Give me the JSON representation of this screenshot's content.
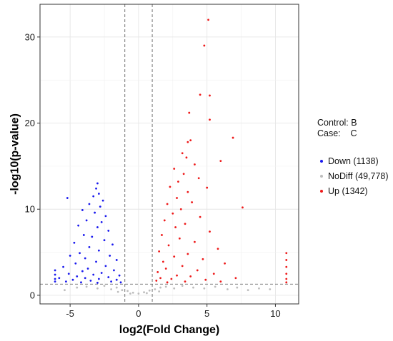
{
  "chart_data": {
    "type": "scatter",
    "title": "",
    "xlabel": "log2(Fold Change)",
    "ylabel": "-log10(p-value)",
    "xlim": [
      -7.2,
      11.7
    ],
    "ylim": [
      -1.0,
      33.8
    ],
    "x_ticks": [
      -5,
      0,
      5,
      10
    ],
    "y_ticks": [
      0,
      10,
      20,
      30
    ],
    "x_tick_labels": [
      "-5",
      "0",
      "5",
      "10"
    ],
    "y_tick_labels": [
      "0",
      "10",
      "20",
      "30"
    ],
    "grid": true,
    "legend_position": "right",
    "thresholds": {
      "fold_change_vlines": [
        -1,
        1
      ],
      "pvalue_hline": 1.3
    },
    "colors": {
      "Down": "#1a1aee",
      "NoDiff": "#bdbdbd",
      "Up": "#ee1a1a"
    },
    "series": [
      {
        "name": "Down (1138)",
        "group": "Down",
        "count": 1138,
        "points": [
          [
            -5.2,
            11.3
          ],
          [
            -3.0,
            13.0
          ],
          [
            -3.1,
            12.4
          ],
          [
            -2.9,
            11.8
          ],
          [
            -3.3,
            11.5
          ],
          [
            -2.6,
            11.0
          ],
          [
            -3.6,
            10.6
          ],
          [
            -2.8,
            10.3
          ],
          [
            -4.1,
            9.9
          ],
          [
            -3.2,
            9.6
          ],
          [
            -2.4,
            9.2
          ],
          [
            -3.8,
            8.7
          ],
          [
            -2.7,
            8.5
          ],
          [
            -4.4,
            8.1
          ],
          [
            -3.0,
            7.9
          ],
          [
            -2.2,
            7.5
          ],
          [
            -4.0,
            7.0
          ],
          [
            -3.4,
            6.8
          ],
          [
            -2.5,
            6.4
          ],
          [
            -4.7,
            6.1
          ],
          [
            -1.9,
            5.9
          ],
          [
            -3.6,
            5.6
          ],
          [
            -2.9,
            5.2
          ],
          [
            -4.3,
            4.9
          ],
          [
            -2.1,
            4.6
          ],
          [
            -5.0,
            4.6
          ],
          [
            -3.9,
            4.3
          ],
          [
            -1.6,
            4.1
          ],
          [
            -3.1,
            3.9
          ],
          [
            -4.6,
            3.7
          ],
          [
            -2.4,
            3.4
          ],
          [
            -5.5,
            3.3
          ],
          [
            -3.7,
            3.1
          ],
          [
            -1.8,
            2.9
          ],
          [
            -4.1,
            2.8
          ],
          [
            -2.7,
            2.6
          ],
          [
            -5.1,
            2.5
          ],
          [
            -3.3,
            2.4
          ],
          [
            -1.4,
            2.3
          ],
          [
            -4.5,
            2.2
          ],
          [
            -2.2,
            2.1
          ],
          [
            -3.9,
            2.0
          ],
          [
            -5.8,
            2.0
          ],
          [
            -2.9,
            1.9
          ],
          [
            -1.6,
            1.8
          ],
          [
            -4.8,
            1.8
          ],
          [
            -3.5,
            1.7
          ],
          [
            -2.0,
            1.6
          ],
          [
            -5.3,
            1.6
          ],
          [
            -4.2,
            1.5
          ],
          [
            -1.3,
            1.5
          ],
          [
            -3.0,
            1.45
          ],
          [
            -6.1,
            2.9
          ],
          [
            -6.1,
            2.4
          ],
          [
            -6.1,
            1.9
          ],
          [
            -6.1,
            1.6
          ]
        ]
      },
      {
        "name": "NoDiff (49,778)",
        "group": "NoDiff",
        "count": 49778,
        "points": [
          [
            -4.5,
            0.9
          ],
          [
            -3.8,
            1.0
          ],
          [
            -3.0,
            0.8
          ],
          [
            -2.5,
            1.1
          ],
          [
            -2.0,
            0.7
          ],
          [
            -1.6,
            0.9
          ],
          [
            -1.2,
            0.6
          ],
          [
            -0.8,
            0.5
          ],
          [
            -0.4,
            0.3
          ],
          [
            0.0,
            0.2
          ],
          [
            0.4,
            0.35
          ],
          [
            0.8,
            0.55
          ],
          [
            1.2,
            0.7
          ],
          [
            1.6,
            0.9
          ],
          [
            2.0,
            1.0
          ],
          [
            2.6,
            0.8
          ],
          [
            3.2,
            1.1
          ],
          [
            4.0,
            0.9
          ],
          [
            4.8,
            0.8
          ],
          [
            5.6,
            1.0
          ],
          [
            6.5,
            0.7
          ],
          [
            7.2,
            0.9
          ],
          [
            8.0,
            0.6
          ],
          [
            8.8,
            0.8
          ],
          [
            9.6,
            0.7
          ],
          [
            -5.4,
            0.6
          ],
          [
            -0.6,
            0.2
          ],
          [
            0.6,
            0.25
          ],
          [
            1.5,
            0.45
          ],
          [
            -1.5,
            0.4
          ]
        ]
      },
      {
        "name": "Up (1342)",
        "group": "Up",
        "count": 1342,
        "points": [
          [
            5.1,
            32.0
          ],
          [
            4.8,
            29.0
          ],
          [
            4.5,
            23.3
          ],
          [
            5.2,
            23.2
          ],
          [
            3.7,
            21.2
          ],
          [
            5.2,
            20.4
          ],
          [
            6.9,
            18.3
          ],
          [
            3.8,
            18.0
          ],
          [
            3.6,
            17.8
          ],
          [
            3.2,
            16.5
          ],
          [
            3.5,
            16.0
          ],
          [
            6.0,
            15.6
          ],
          [
            4.1,
            15.2
          ],
          [
            2.6,
            14.7
          ],
          [
            3.3,
            14.1
          ],
          [
            4.4,
            13.6
          ],
          [
            2.9,
            13.2
          ],
          [
            5.0,
            12.5
          ],
          [
            2.3,
            12.6
          ],
          [
            3.6,
            12.0
          ],
          [
            2.8,
            11.3
          ],
          [
            3.9,
            10.8
          ],
          [
            2.1,
            10.6
          ],
          [
            7.6,
            10.2
          ],
          [
            3.1,
            10.0
          ],
          [
            2.5,
            9.5
          ],
          [
            4.5,
            9.1
          ],
          [
            1.9,
            8.7
          ],
          [
            3.4,
            8.3
          ],
          [
            2.7,
            7.9
          ],
          [
            5.2,
            7.4
          ],
          [
            1.7,
            7.0
          ],
          [
            3.0,
            6.6
          ],
          [
            4.1,
            6.2
          ],
          [
            2.2,
            5.8
          ],
          [
            5.8,
            5.4
          ],
          [
            1.5,
            5.1
          ],
          [
            3.6,
            4.8
          ],
          [
            2.6,
            4.5
          ],
          [
            4.7,
            4.2
          ],
          [
            1.8,
            3.9
          ],
          [
            6.3,
            3.7
          ],
          [
            3.2,
            3.4
          ],
          [
            2.0,
            3.1
          ],
          [
            4.3,
            2.9
          ],
          [
            1.4,
            2.7
          ],
          [
            5.5,
            2.5
          ],
          [
            2.8,
            2.3
          ],
          [
            3.8,
            2.2
          ],
          [
            1.6,
            2.0
          ],
          [
            7.1,
            2.0
          ],
          [
            2.4,
            1.9
          ],
          [
            4.9,
            1.8
          ],
          [
            1.3,
            1.7
          ],
          [
            3.4,
            1.6
          ],
          [
            6.0,
            1.6
          ],
          [
            2.1,
            1.5
          ],
          [
            10.8,
            4.9
          ],
          [
            10.8,
            4.1
          ],
          [
            10.8,
            3.3
          ],
          [
            10.8,
            2.5
          ],
          [
            10.8,
            1.9
          ],
          [
            10.8,
            1.5
          ]
        ]
      }
    ]
  },
  "legend": {
    "control_line": "Control: B",
    "case_line": "Case:    C",
    "items": [
      {
        "label": "Down (1138)",
        "color": "#1a1aee"
      },
      {
        "label": "NoDiff (49,778)",
        "color": "#bdbdbd"
      },
      {
        "label": "Up (1342)",
        "color": "#ee1a1a"
      }
    ]
  }
}
